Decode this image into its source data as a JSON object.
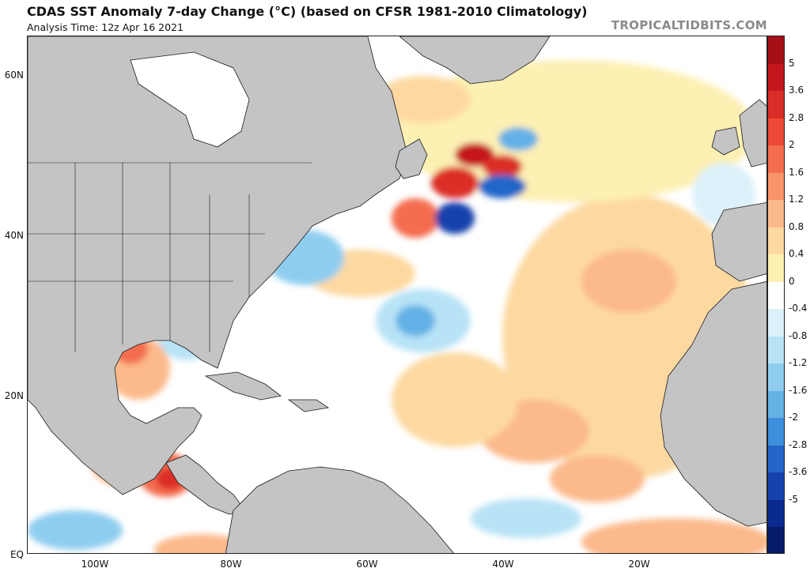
{
  "header": {
    "title": "CDAS SST Anomaly 7-day Change (°C) (based on CFSR 1981-2010 Climatology)",
    "subtitle": "Analysis Time: 12z Apr 16 2021",
    "brand": "TROPICALTIDBITS.COM"
  },
  "axes": {
    "lat_labels": [
      "60N",
      "40N",
      "20N",
      "EQ"
    ],
    "lon_labels": [
      "100W",
      "80W",
      "60W",
      "40W",
      "20W"
    ]
  },
  "colorbar": {
    "labels": [
      "5",
      "3.6",
      "2.8",
      "2",
      "1.6",
      "1.2",
      "0.8",
      "0.4",
      "0",
      "-0.4",
      "-0.8",
      "-1.2",
      "-1.6",
      "-2",
      "-2.8",
      "-3.6",
      "-5"
    ],
    "colors": [
      "#a50f15",
      "#c4161c",
      "#db2d27",
      "#ec4a36",
      "#f46d4f",
      "#f9946b",
      "#fcb98b",
      "#fdd9a1",
      "#fdf0b3",
      "#ffffff",
      "#dcf1fa",
      "#b8e3f6",
      "#8fcdf0",
      "#64b1e6",
      "#3d8fdb",
      "#2366c9",
      "#1443ad",
      "#0b2a8f",
      "#061b6b"
    ]
  },
  "map": {
    "land_color": "#c4c4c4",
    "ocean_color": "#ffffff",
    "border_color": "#1a1a1a"
  }
}
